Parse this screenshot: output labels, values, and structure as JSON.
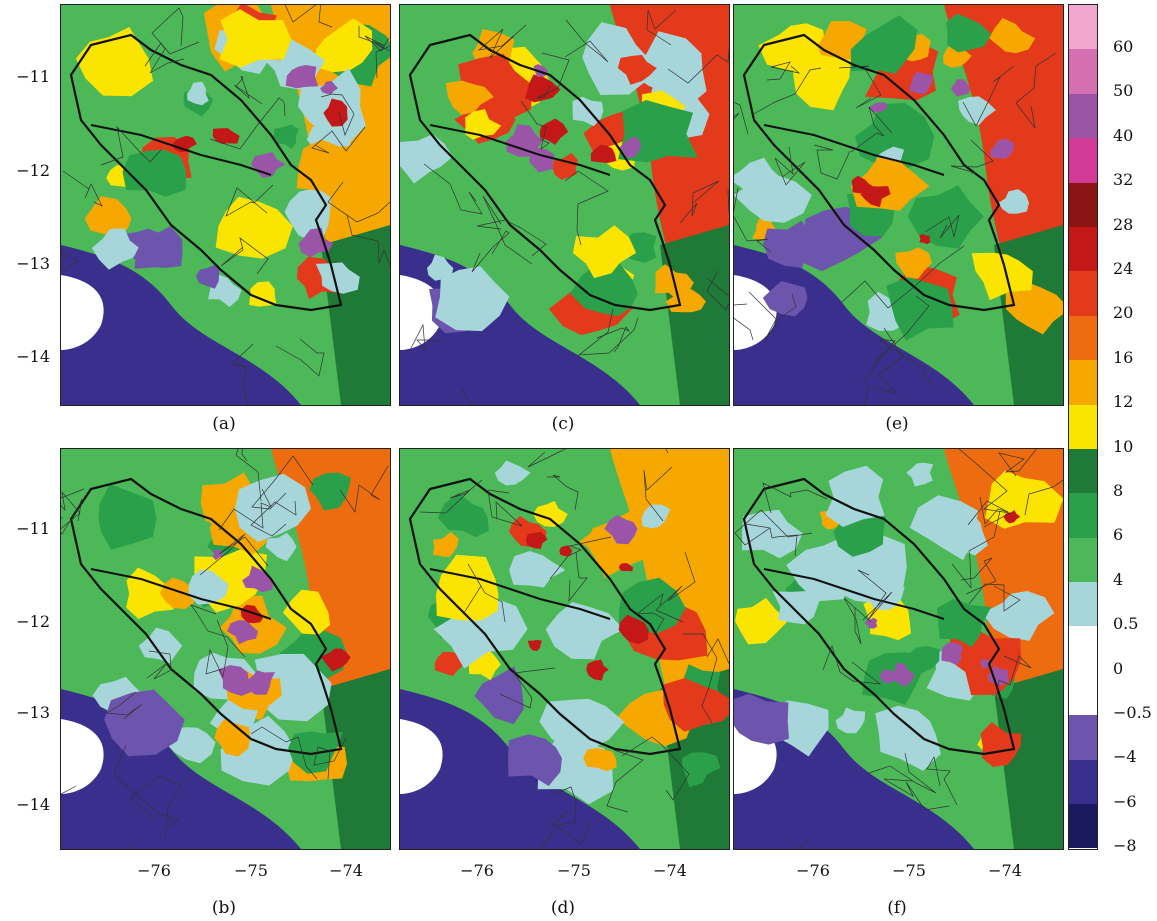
{
  "figure": {
    "panels": [
      {
        "id": "a",
        "label": "(a)"
      },
      {
        "id": "c",
        "label": "(c)"
      },
      {
        "id": "e",
        "label": "(e)"
      },
      {
        "id": "b",
        "label": "(b)"
      },
      {
        "id": "d",
        "label": "(d)"
      },
      {
        "id": "f",
        "label": "(f)"
      }
    ],
    "lat_ticks": [
      "−11",
      "−12",
      "−13",
      "−14"
    ],
    "lon_ticks": [
      "−76",
      "−75",
      "−74"
    ],
    "colorbar": {
      "labels": [
        "60",
        "50",
        "40",
        "32",
        "28",
        "24",
        "20",
        "16",
        "12",
        "10",
        "8",
        "6",
        "4",
        "0.5",
        "0",
        "−0.5",
        "−4",
        "−6",
        "−8"
      ],
      "colors": [
        "#f2a7cf",
        "#d46fb0",
        "#9b55a8",
        "#d23b97",
        "#8b1414",
        "#c41818",
        "#e33a1c",
        "#ee6c10",
        "#f6a800",
        "#fbe400",
        "#1e7a36",
        "#2aa04a",
        "#4cb858",
        "#a6d6d9",
        "#ffffff",
        "#ffffff",
        "#6d55ad",
        "#3b2f8e",
        "#1c1a5e"
      ]
    }
  }
}
